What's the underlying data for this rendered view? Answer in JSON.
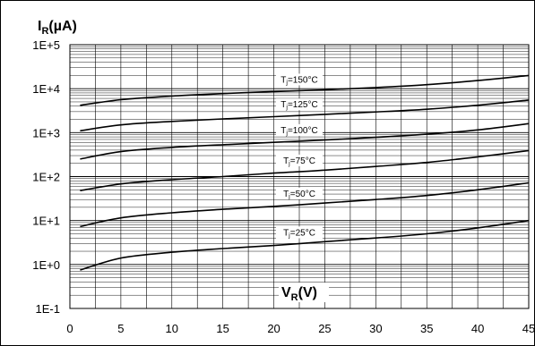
{
  "chart_data": {
    "type": "line",
    "ylabel": {
      "main": "I",
      "sub": "R",
      "unit": "(µA)"
    },
    "xlabel": {
      "main": "V",
      "sub": "R",
      "unit": "(V)"
    },
    "xlim": [
      0,
      45
    ],
    "ylim": [
      0.1,
      100000
    ],
    "yscale": "log",
    "grid": true,
    "x_ticks": [
      "0",
      "5",
      "10",
      "15",
      "20",
      "25",
      "30",
      "35",
      "40",
      "45"
    ],
    "y_ticks": [
      "1E-1",
      "1E+0",
      "1E+1",
      "1E+2",
      "1E+3",
      "1E+4",
      "1E+5"
    ],
    "x": [
      1,
      5,
      10,
      15,
      20,
      25,
      30,
      35,
      40,
      45
    ],
    "series": [
      {
        "label_main": "T",
        "label_sub": "j",
        "label_rest": "=150°C",
        "values": [
          4200,
          5600,
          6800,
          7700,
          8600,
          9400,
          10600,
          12300,
          15300,
          20000
        ]
      },
      {
        "label_main": "T",
        "label_sub": "j",
        "label_rest": "=125°C",
        "values": [
          1100,
          1500,
          1800,
          2050,
          2300,
          2600,
          2950,
          3400,
          4200,
          5500
        ]
      },
      {
        "label_main": "T",
        "label_sub": "j",
        "label_rest": "=100°C",
        "values": [
          250,
          370,
          460,
          530,
          600,
          680,
          780,
          920,
          1150,
          1600
        ]
      },
      {
        "label_main": "T",
        "label_sub": "j",
        "label_rest": "=75°C",
        "values": [
          48,
          68,
          85,
          100,
          120,
          140,
          170,
          210,
          280,
          390
        ]
      },
      {
        "label_main": "T",
        "label_sub": "j",
        "label_rest": "=50°C",
        "values": [
          7.3,
          11.5,
          15,
          18,
          21,
          25,
          30,
          37,
          50,
          72
        ]
      },
      {
        "label_main": "T",
        "label_sub": "j",
        "label_rest": "=25°C",
        "values": [
          0.75,
          1.4,
          1.9,
          2.3,
          2.7,
          3.3,
          4,
          5,
          6.8,
          10
        ]
      }
    ]
  }
}
